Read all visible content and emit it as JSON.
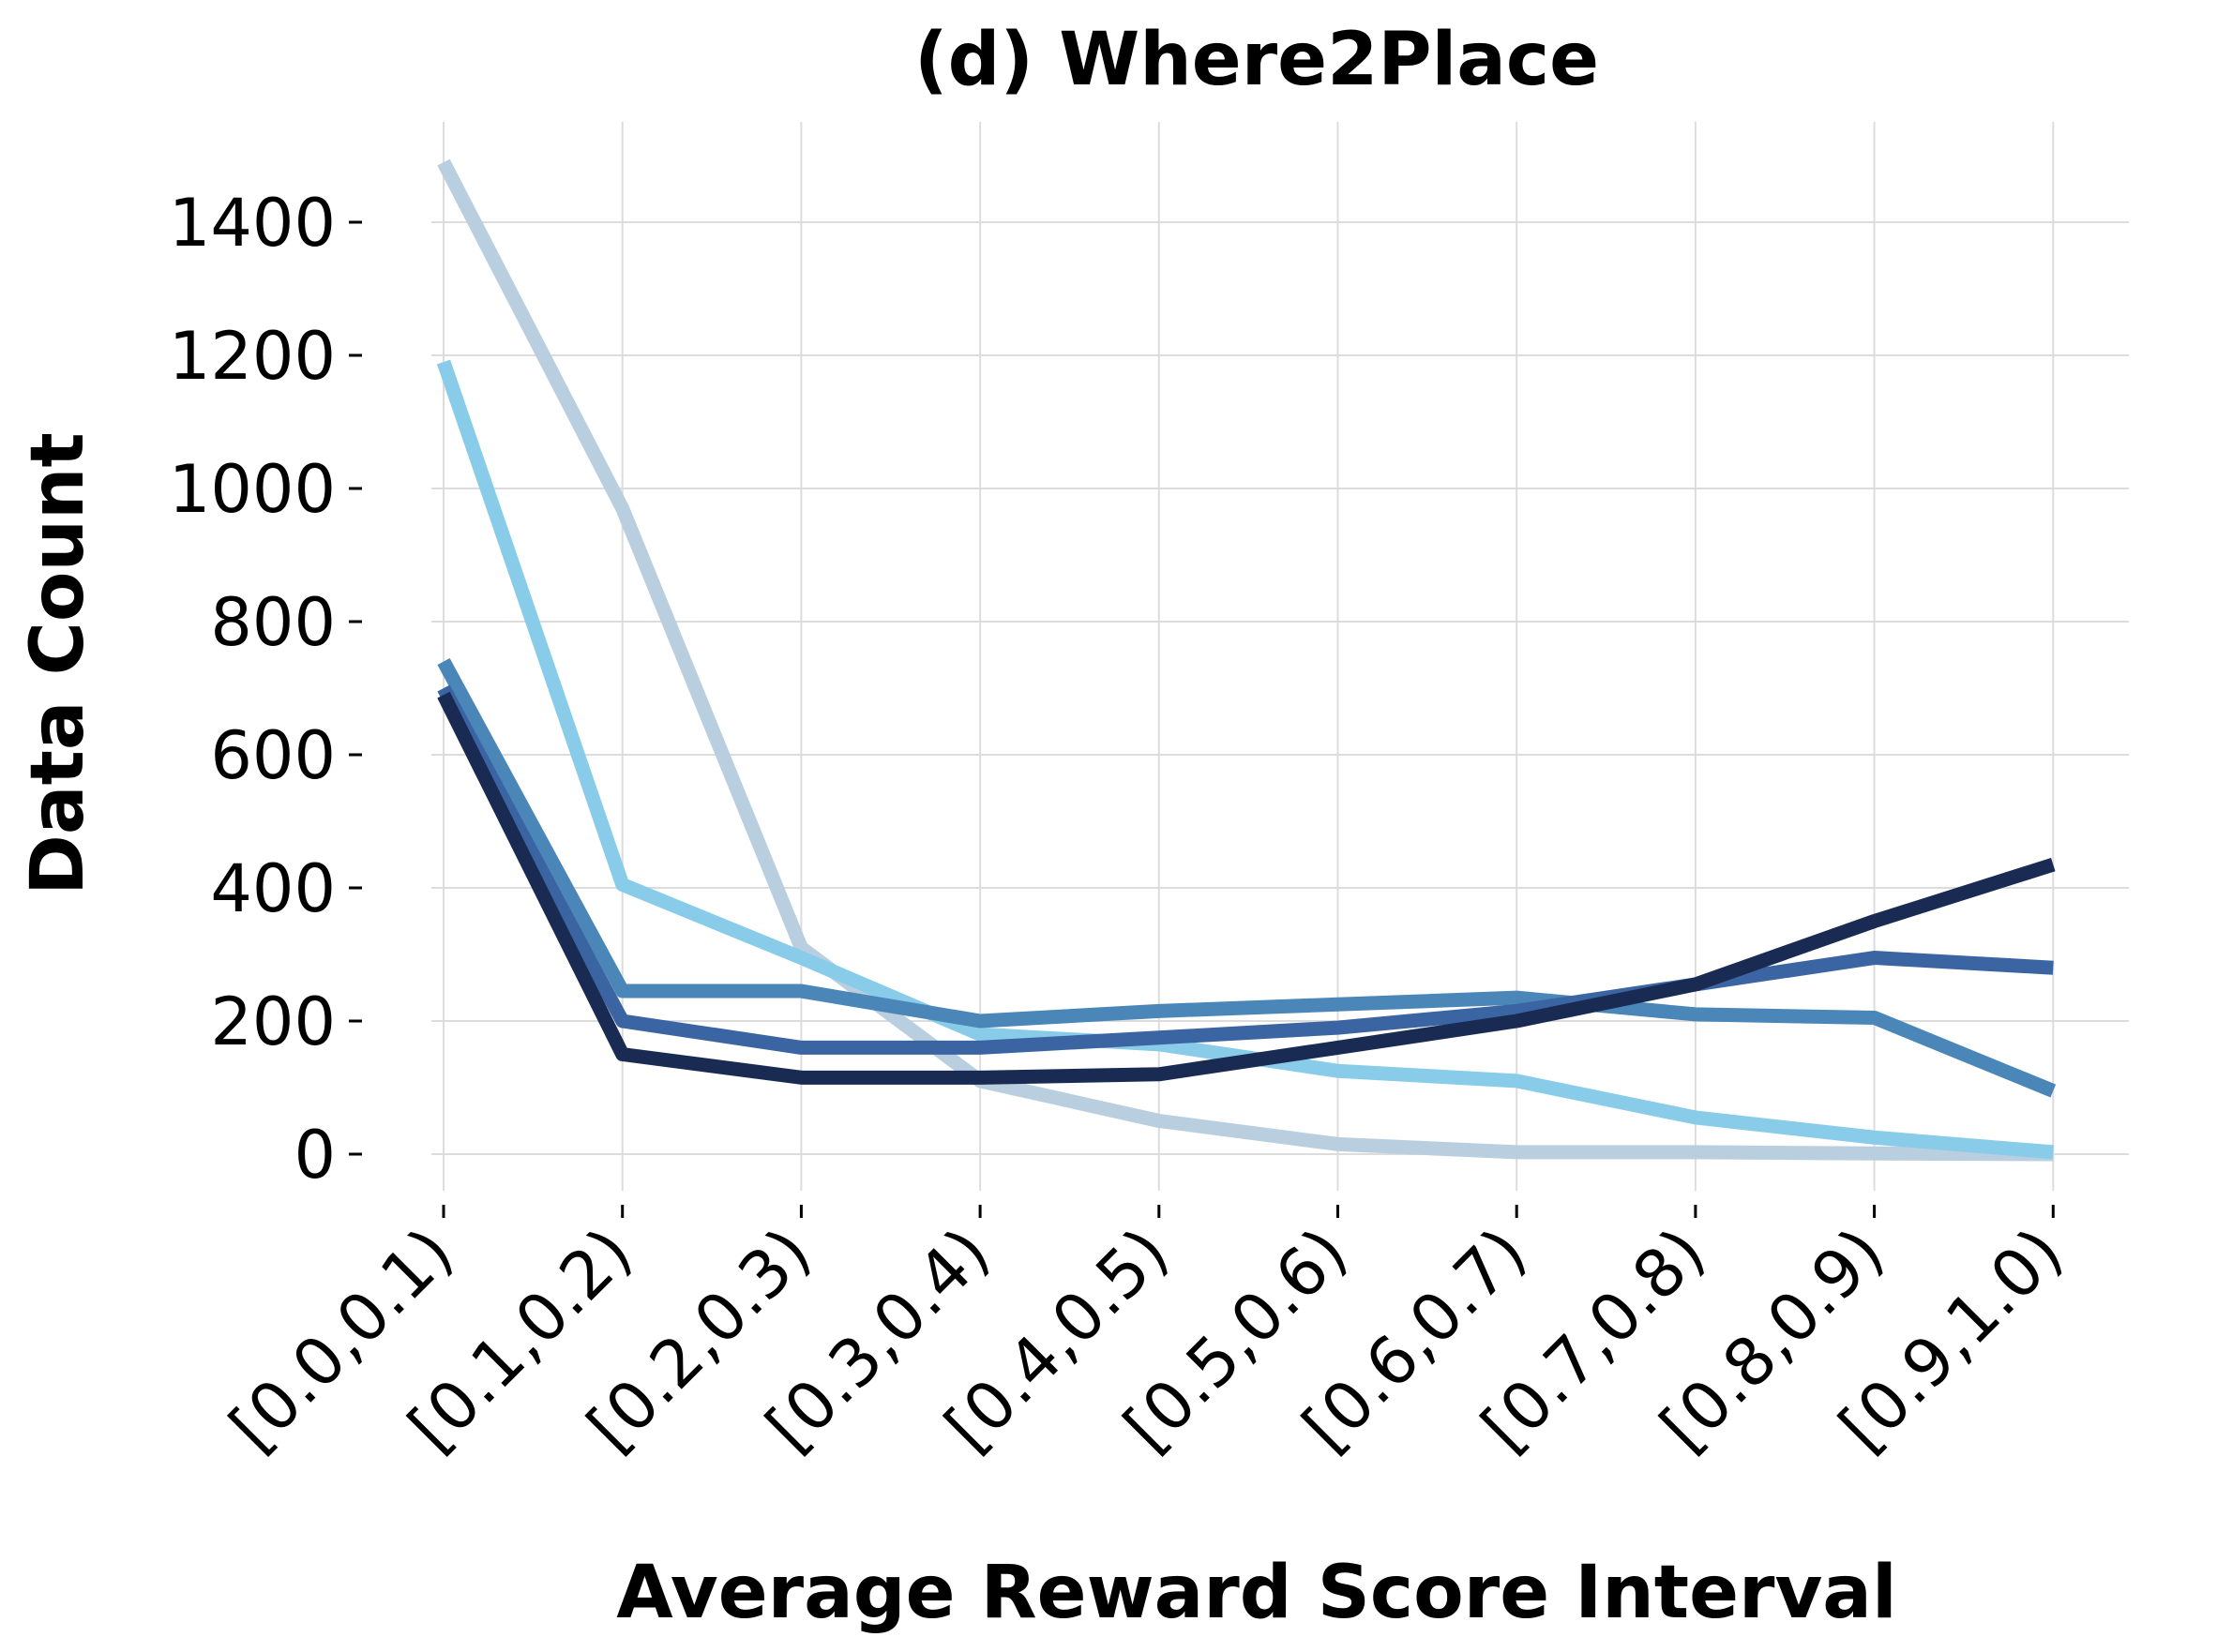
{
  "chart_data": {
    "type": "line",
    "title": "(d) Where2Place",
    "xlabel": "Average Reward Score Interval",
    "ylabel": "Data Count",
    "categories": [
      "[0.0,0.1)",
      "[0.1,0.2)",
      "[0.2,0.3)",
      "[0.3,0.4)",
      "[0.4,0.5)",
      "[0.5,0.6)",
      "[0.6,0.7)",
      "[0.7,0.8)",
      "[0.8,0.9)",
      "[0.9,1.0)"
    ],
    "yticks": [
      0,
      200,
      400,
      600,
      800,
      1000,
      1200,
      1400
    ],
    "ylim": [
      -80,
      1560
    ],
    "grid": true,
    "series": [
      {
        "color": "#b9cfe0",
        "values": [
          1490,
          970,
          310,
          110,
          50,
          15,
          3,
          3,
          1,
          0
        ]
      },
      {
        "color": "#88cce9",
        "values": [
          1190,
          405,
          295,
          180,
          165,
          125,
          110,
          55,
          25,
          3
        ]
      },
      {
        "color": "#4a86b8",
        "values": [
          740,
          245,
          245,
          200,
          215,
          225,
          235,
          210,
          205,
          95
        ]
      },
      {
        "color": "#3a65a2",
        "values": [
          700,
          200,
          160,
          160,
          175,
          190,
          215,
          255,
          295,
          280
        ]
      },
      {
        "color": "#1a2b53",
        "values": [
          690,
          150,
          115,
          115,
          120,
          160,
          200,
          255,
          350,
          435
        ]
      }
    ]
  }
}
